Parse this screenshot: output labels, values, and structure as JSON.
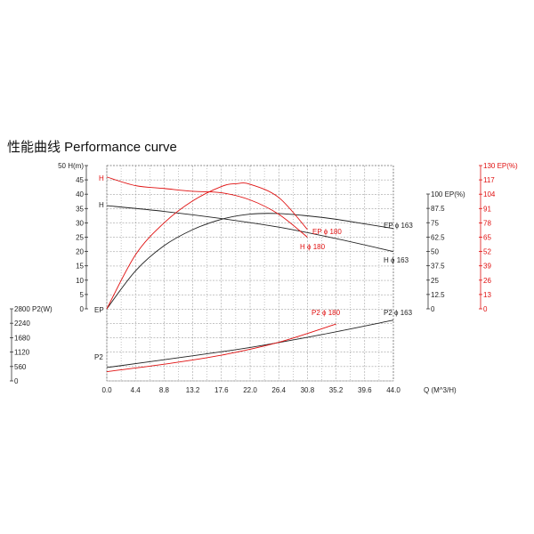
{
  "title": "性能曲线  Performance curve",
  "chart_data": {
    "type": "line",
    "x_label": "Q (M^3/H)",
    "x_ticks": [
      "0.0",
      "4.4",
      "8.8",
      "13.2",
      "17.6",
      "22.0",
      "26.4",
      "30.8",
      "35.2",
      "39.6",
      "44.0"
    ],
    "x_range": [
      0,
      44
    ],
    "axes": {
      "head": {
        "label": "H(m)",
        "top_label": "50 H(m)",
        "ticks": [
          "45",
          "40",
          "35",
          "30",
          "25",
          "20",
          "15",
          "10",
          "5",
          "0"
        ],
        "range": [
          0,
          50
        ]
      },
      "ep_black": {
        "label": "EP(%)",
        "top_label": "100 EP(%)",
        "ticks": [
          "87.5",
          "75",
          "62.5",
          "50",
          "37.5",
          "25",
          "12.5",
          "0"
        ],
        "range": [
          0,
          100
        ]
      },
      "ep_red": {
        "label": "EP(%)",
        "top_label": "130 EP(%)",
        "ticks": [
          "117",
          "104",
          "91",
          "78",
          "65",
          "52",
          "39",
          "26",
          "13",
          "0"
        ],
        "range": [
          0,
          130
        ],
        "color": "#e01010"
      },
      "p2": {
        "label": "P2(W)",
        "top_label": "2800 P2(W)",
        "ticks": [
          "2240",
          "1680",
          "1120",
          "560",
          "0"
        ],
        "range": [
          0,
          2800
        ]
      }
    },
    "series": [
      {
        "name": "H ϕ 163",
        "axis": "head",
        "color": "#222222",
        "x": [
          0,
          8.8,
          17.6,
          26.4,
          35.2,
          44
        ],
        "y": [
          36,
          34,
          31.5,
          28.5,
          24.5,
          20
        ]
      },
      {
        "name": "EP ϕ 163",
        "axis": "ep_black",
        "color": "#222222",
        "x": [
          0,
          4.4,
          8.8,
          13.2,
          17.6,
          22,
          26.4,
          30.8,
          35.2,
          39.6,
          44
        ],
        "y": [
          0,
          33,
          55,
          69,
          78,
          82.5,
          83,
          81,
          78,
          74,
          70
        ]
      },
      {
        "name": "P2 ϕ 163",
        "axis": "p2",
        "color": "#222222",
        "x": [
          0,
          11,
          22,
          33,
          44
        ],
        "y": [
          520,
          900,
          1300,
          1800,
          2360
        ]
      },
      {
        "name": "H ϕ 180",
        "axis": "head",
        "color": "#e01010",
        "x": [
          0,
          4.4,
          8.8,
          13.2,
          17.6,
          22,
          26.4,
          30.8
        ],
        "y": [
          46,
          43,
          42,
          41,
          40.5,
          38,
          33,
          25
        ]
      },
      {
        "name": "EP ϕ 180",
        "axis": "ep_red",
        "color": "#e01010",
        "x": [
          0,
          4.4,
          8.8,
          13.2,
          17.6,
          19.8,
          22,
          26.4,
          30.8
        ],
        "y": [
          0,
          49,
          78,
          98,
          111,
          113.5,
          113,
          101,
          72
        ]
      },
      {
        "name": "P2 ϕ 180",
        "axis": "p2",
        "color": "#e01010",
        "x": [
          0,
          8.8,
          17.6,
          26.4,
          35.2
        ],
        "y": [
          360,
          650,
          1000,
          1500,
          2210
        ]
      }
    ],
    "curve_labels": [
      {
        "text": "H",
        "color": "#222222"
      },
      {
        "text": "H",
        "color": "#e01010"
      },
      {
        "text": "EP",
        "color": "#222222"
      },
      {
        "text": "P2",
        "color": "#222222"
      },
      {
        "text": "EP ϕ 163",
        "color": "#222222"
      },
      {
        "text": "H ϕ 163",
        "color": "#222222"
      },
      {
        "text": "P2 ϕ 163",
        "color": "#222222"
      },
      {
        "text": "EP ϕ 180",
        "color": "#e01010"
      },
      {
        "text": "H ϕ 180",
        "color": "#e01010"
      },
      {
        "text": "P2 ϕ 180",
        "color": "#e01010"
      }
    ],
    "grid": true
  }
}
